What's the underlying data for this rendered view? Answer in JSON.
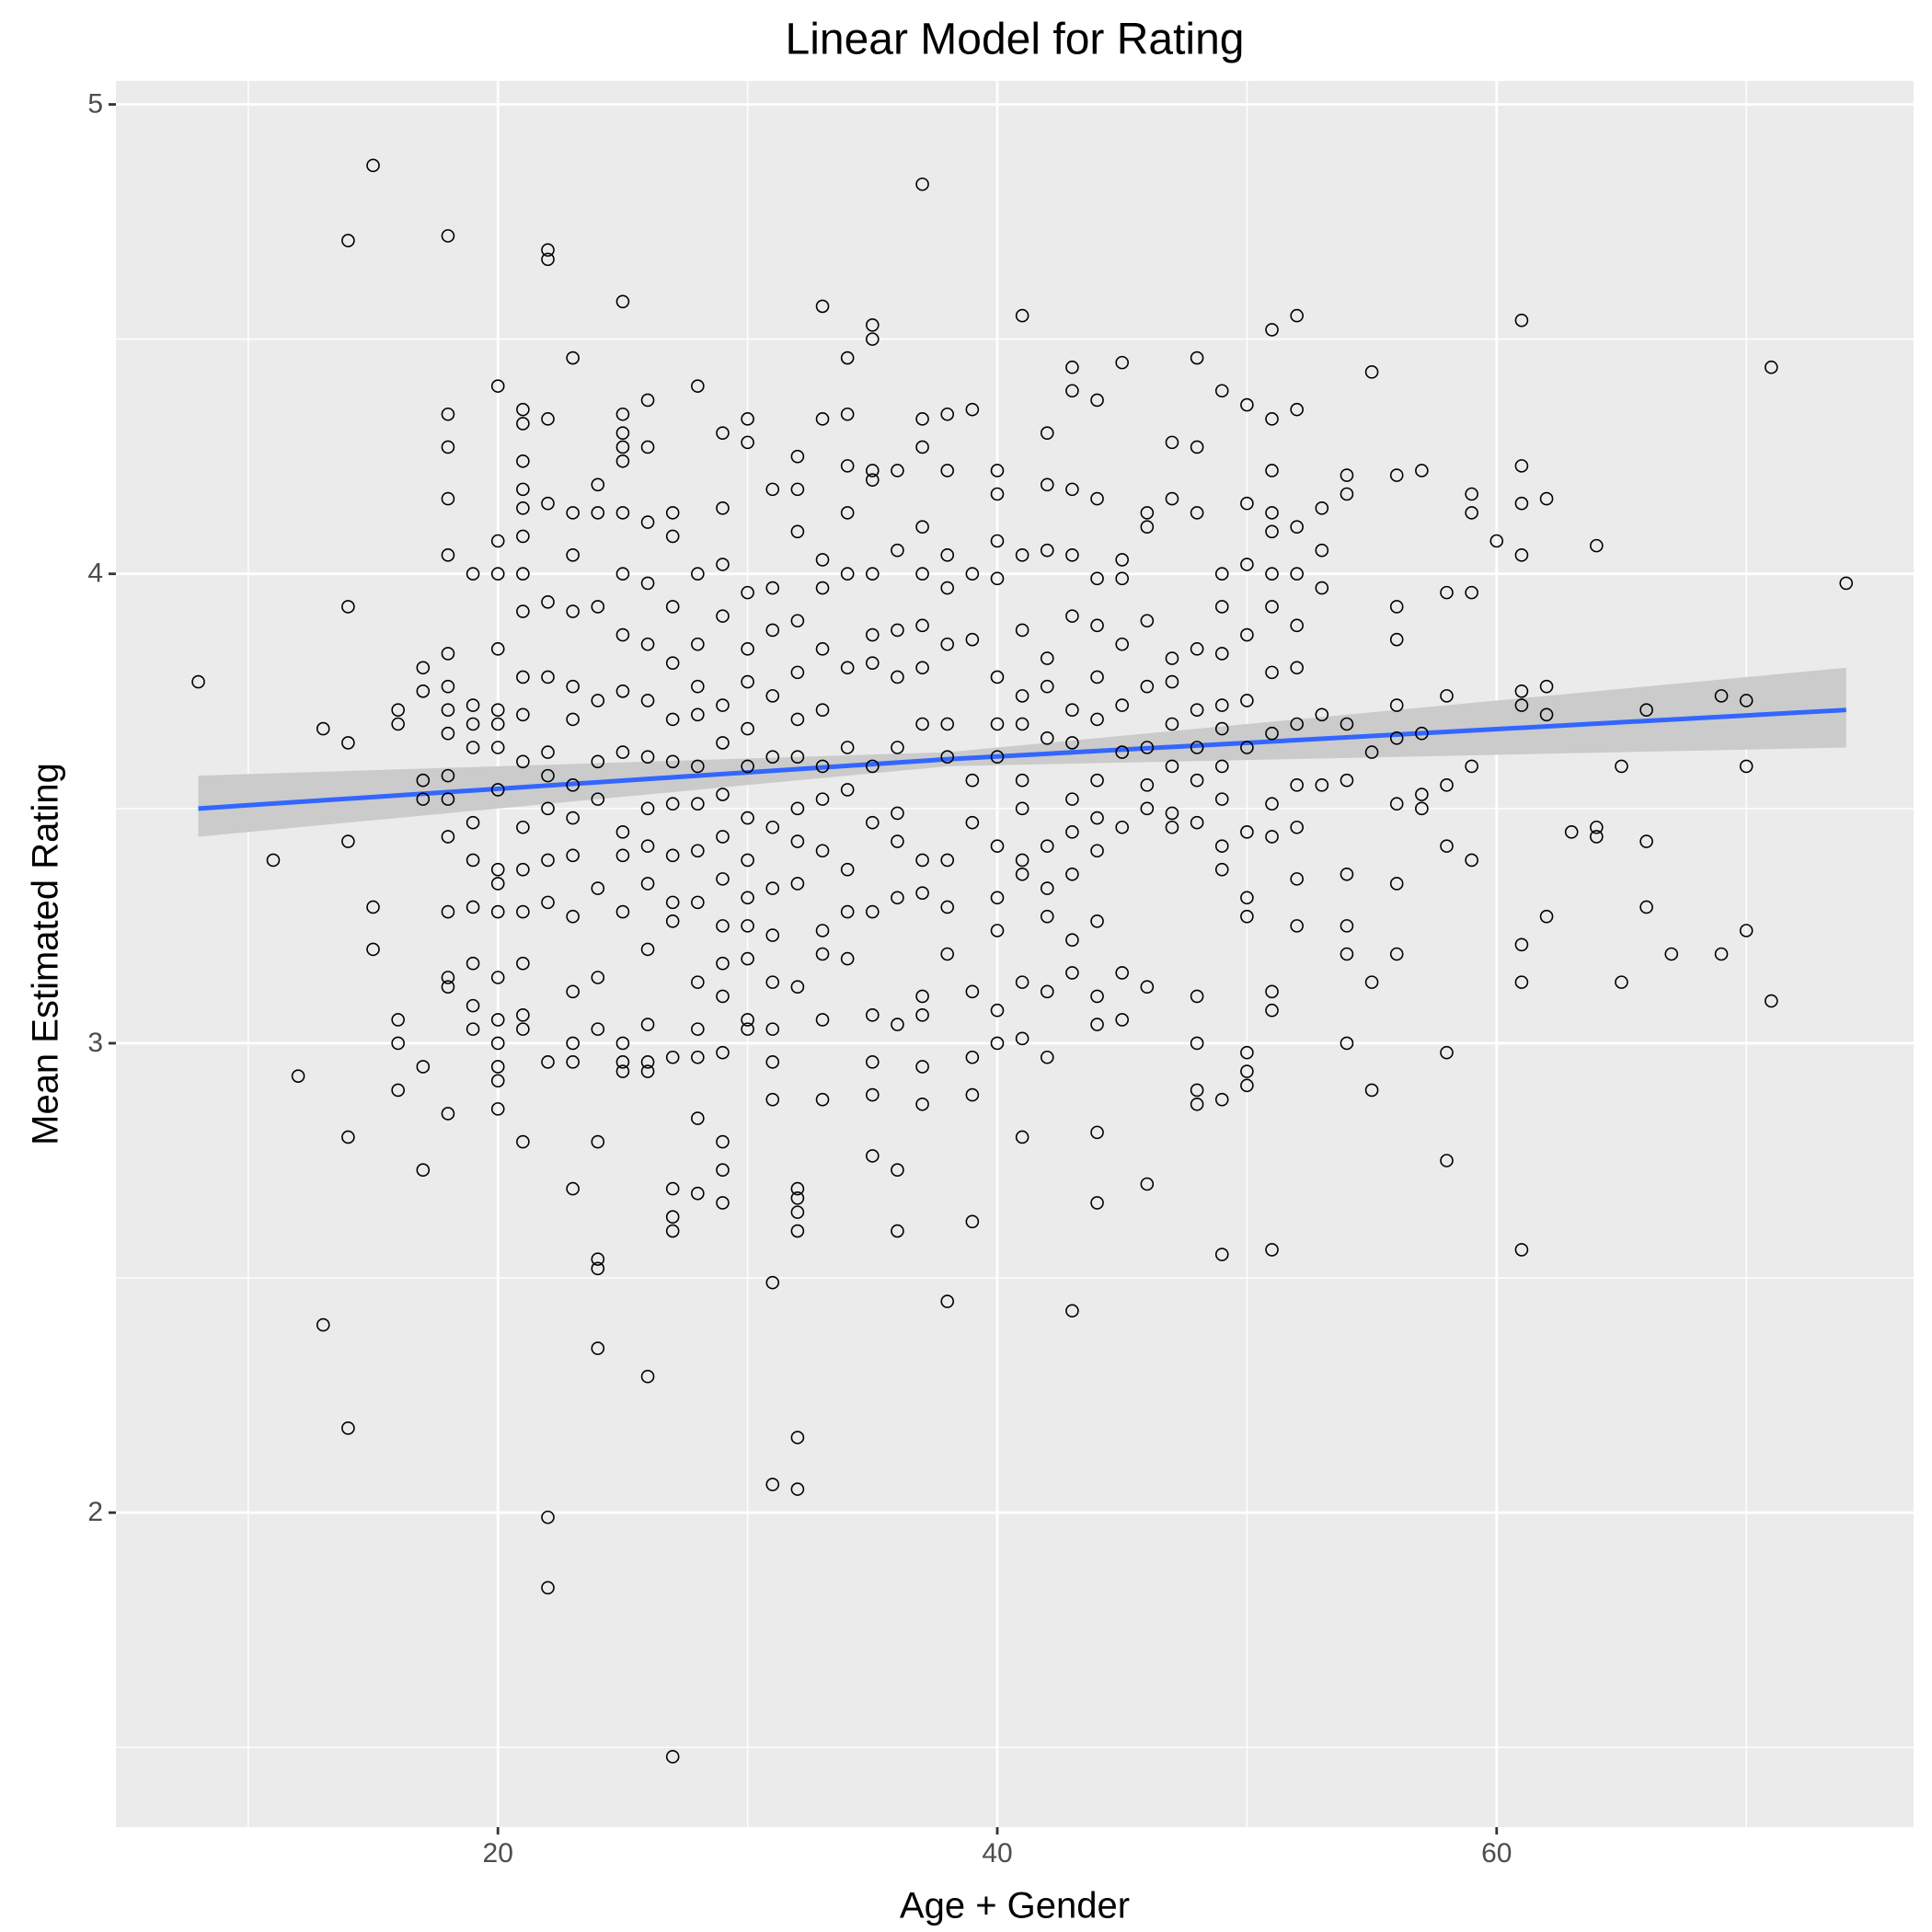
{
  "chart_data": {
    "type": "scatter",
    "title": "Linear Model for Rating",
    "x_label": "Age + Gender",
    "y_label": "Mean Estimated Rating",
    "xlim": [
      4.7,
      76.7
    ],
    "ylim": [
      1.33,
      5.05
    ],
    "xticks": [
      20,
      40,
      60
    ],
    "yticks": [
      2,
      3,
      4,
      5
    ],
    "grid": true,
    "point_color": "#000000",
    "fit": {
      "color": "#3366ff",
      "band_color": "#cbcbcb",
      "x": [
        8,
        38,
        74
      ],
      "y": [
        3.5,
        3.605,
        3.71
      ],
      "lower": [
        3.44,
        3.59,
        3.63
      ],
      "upper": [
        3.57,
        3.62,
        3.8
      ]
    },
    "x": [
      8,
      11,
      12,
      13,
      13,
      14,
      14,
      14,
      14,
      14,
      14,
      15,
      15,
      15,
      16,
      16,
      16,
      16,
      16,
      17,
      17,
      17,
      17,
      17,
      17,
      18,
      18,
      18,
      18,
      18,
      18,
      18,
      18,
      18,
      18,
      18,
      18,
      18,
      18,
      18,
      18,
      19,
      19,
      19,
      19,
      19,
      19,
      19,
      19,
      19,
      19,
      20,
      20,
      20,
      20,
      20,
      20,
      20,
      20,
      20,
      20,
      20,
      20,
      20,
      20,
      20,
      20,
      20,
      21,
      21,
      21,
      21,
      21,
      21,
      21,
      21,
      21,
      21,
      21,
      21,
      21,
      21,
      21,
      21,
      21,
      21,
      22,
      22,
      22,
      22,
      22,
      22,
      22,
      22,
      22,
      22,
      22,
      22,
      22,
      22,
      23,
      23,
      23,
      23,
      23,
      23,
      23,
      23,
      23,
      23,
      23,
      23,
      23,
      23,
      24,
      24,
      24,
      24,
      24,
      24,
      24,
      24,
      24,
      24,
      24,
      24,
      24,
      25,
      25,
      25,
      25,
      25,
      25,
      25,
      25,
      25,
      25,
      25,
      25,
      25,
      25,
      25,
      25,
      26,
      26,
      26,
      26,
      26,
      26,
      26,
      26,
      26,
      26,
      26,
      26,
      26,
      26,
      26,
      27,
      27,
      27,
      27,
      27,
      27,
      27,
      27,
      27,
      27,
      27,
      27,
      27,
      27,
      27,
      28,
      28,
      28,
      28,
      28,
      28,
      28,
      28,
      28,
      28,
      28,
      28,
      28,
      28,
      29,
      29,
      29,
      29,
      29,
      29,
      29,
      29,
      29,
      29,
      29,
      29,
      29,
      29,
      29,
      29,
      30,
      30,
      30,
      30,
      30,
      30,
      30,
      30,
      30,
      30,
      30,
      30,
      30,
      30,
      31,
      31,
      31,
      31,
      31,
      31,
      31,
      31,
      31,
      31,
      31,
      31,
      31,
      31,
      32,
      32,
      32,
      32,
      32,
      32,
      32,
      32,
      32,
      32,
      32,
      32,
      32,
      32,
      32,
      32,
      32,
      33,
      33,
      33,
      33,
      33,
      33,
      33,
      33,
      33,
      33,
      33,
      33,
      33,
      34,
      34,
      34,
      34,
      34,
      34,
      34,
      34,
      34,
      34,
      34,
      35,
      35,
      35,
      35,
      35,
      35,
      35,
      35,
      35,
      35,
      35,
      35,
      35,
      35,
      36,
      36,
      36,
      36,
      36,
      36,
      36,
      36,
      36,
      36,
      36,
      37,
      37,
      37,
      37,
      37,
      37,
      37,
      37,
      37,
      37,
      37,
      37,
      37,
      37,
      38,
      38,
      38,
      38,
      38,
      38,
      38,
      38,
      38,
      38,
      38,
      39,
      39,
      39,
      39,
      39,
      39,
      39,
      39,
      39,
      40,
      40,
      40,
      40,
      40,
      40,
      40,
      40,
      40,
      40,
      40,
      40,
      41,
      41,
      41,
      41,
      41,
      41,
      41,
      41,
      41,
      41,
      41,
      41,
      42,
      42,
      42,
      42,
      42,
      42,
      42,
      42,
      42,
      42,
      42,
      43,
      43,
      43,
      43,
      43,
      43,
      43,
      43,
      43,
      43,
      43,
      43,
      43,
      44,
      44,
      44,
      44,
      44,
      44,
      44,
      44,
      44,
      44,
      44,
      44,
      44,
      44,
      45,
      45,
      45,
      45,
      45,
      45,
      45,
      45,
      45,
      46,
      46,
      46,
      46,
      46,
      46,
      46,
      46,
      46,
      47,
      47,
      47,
      47,
      47,
      47,
      47,
      47,
      48,
      48,
      48,
      48,
      48,
      48,
      48,
      48,
      48,
      48,
      48,
      48,
      49,
      49,
      49,
      49,
      49,
      49,
      49,
      49,
      49,
      49,
      49,
      49,
      50,
      50,
      50,
      50,
      50,
      50,
      50,
      50,
      50,
      50,
      50,
      50,
      51,
      51,
      51,
      51,
      51,
      51,
      51,
      51,
      51,
      51,
      51,
      51,
      51,
      51,
      52,
      52,
      52,
      52,
      52,
      52,
      52,
      52,
      52,
      52,
      52,
      53,
      53,
      53,
      53,
      53,
      54,
      54,
      54,
      54,
      54,
      54,
      54,
      54,
      55,
      55,
      55,
      55,
      56,
      56,
      56,
      56,
      56,
      56,
      56,
      56,
      57,
      57,
      57,
      57,
      58,
      58,
      58,
      58,
      58,
      58,
      59,
      59,
      59,
      59,
      59,
      60,
      61,
      61,
      61,
      61,
      61,
      61,
      61,
      61,
      61,
      62,
      62,
      62,
      62,
      63,
      64,
      64,
      64,
      65,
      65,
      66,
      66,
      66,
      67,
      69,
      69,
      70,
      70,
      70,
      71,
      71,
      74
    ],
    "y": [
      3.77,
      3.39,
      2.93,
      3.67,
      2.4,
      4.71,
      3.93,
      3.64,
      3.43,
      2.8,
      2.18,
      4.87,
      3.29,
      3.2,
      3.71,
      3.68,
      3.05,
      3.0,
      2.9,
      3.8,
      3.75,
      3.56,
      3.52,
      2.95,
      2.73,
      4.72,
      4.34,
      4.27,
      4.16,
      4.04,
      3.83,
      3.76,
      3.71,
      3.66,
      3.57,
      3.52,
      3.44,
      3.28,
      3.14,
      3.12,
      2.85,
      4.0,
      3.72,
      3.68,
      3.63,
      3.47,
      3.39,
      3.29,
      3.17,
      3.08,
      3.03,
      4.4,
      4.07,
      4.0,
      3.84,
      3.71,
      3.68,
      3.63,
      3.54,
      3.37,
      3.34,
      3.28,
      3.14,
      3.05,
      3.0,
      2.95,
      2.92,
      2.86,
      4.35,
      4.32,
      4.24,
      4.18,
      4.14,
      4.08,
      4.0,
      3.92,
      3.78,
      3.7,
      3.6,
      3.46,
      3.37,
      3.28,
      3.17,
      3.06,
      3.03,
      2.79,
      4.69,
      4.67,
      4.33,
      4.15,
      3.94,
      3.78,
      3.62,
      3.57,
      3.5,
      3.39,
      3.3,
      2.96,
      1.99,
      1.84,
      4.46,
      4.13,
      4.04,
      3.92,
      3.76,
      3.69,
      3.55,
      3.48,
      3.4,
      3.27,
      3.11,
      3.0,
      2.96,
      2.69,
      4.19,
      4.13,
      3.93,
      3.73,
      3.6,
      3.52,
      3.33,
      3.14,
      3.03,
      2.79,
      2.54,
      2.52,
      2.35,
      4.58,
      4.34,
      4.3,
      4.27,
      4.24,
      4.13,
      4.0,
      3.87,
      3.75,
      3.62,
      3.45,
      3.4,
      3.28,
      3.0,
      2.96,
      2.94,
      4.37,
      4.27,
      4.11,
      3.98,
      3.85,
      3.73,
      3.61,
      3.5,
      3.42,
      3.34,
      3.2,
      3.04,
      2.96,
      2.94,
      2.29,
      4.13,
      4.08,
      3.93,
      3.81,
      3.69,
      3.6,
      3.51,
      3.4,
      3.3,
      3.26,
      2.97,
      2.69,
      2.63,
      2.6,
      1.48,
      4.4,
      4.0,
      3.85,
      3.76,
      3.7,
      3.59,
      3.51,
      3.41,
      3.3,
      3.13,
      3.03,
      2.97,
      2.84,
      2.68,
      4.3,
      4.14,
      4.02,
      3.91,
      3.72,
      3.64,
      3.53,
      3.44,
      3.35,
      3.25,
      3.17,
      3.1,
      2.98,
      2.79,
      2.73,
      2.66,
      4.33,
      4.28,
      3.96,
      3.84,
      3.77,
      3.67,
      3.59,
      3.48,
      3.39,
      3.31,
      3.25,
      3.18,
      3.05,
      3.03,
      4.18,
      3.97,
      3.88,
      3.74,
      3.61,
      3.46,
      3.33,
      3.23,
      3.13,
      3.03,
      2.96,
      2.88,
      2.49,
      2.06,
      4.25,
      4.18,
      4.09,
      3.9,
      3.79,
      3.69,
      3.61,
      3.5,
      3.43,
      3.34,
      3.12,
      2.69,
      2.67,
      2.64,
      2.6,
      2.16,
      2.05,
      4.57,
      4.33,
      4.03,
      3.97,
      3.84,
      3.71,
      3.59,
      3.52,
      3.41,
      3.24,
      3.19,
      3.05,
      2.88,
      4.46,
      4.34,
      4.23,
      4.13,
      4.0,
      3.8,
      3.63,
      3.54,
      3.37,
      3.28,
      3.18,
      4.53,
      4.5,
      4.22,
      4.2,
      4.0,
      3.87,
      3.81,
      3.59,
      3.47,
      3.28,
      3.06,
      2.96,
      2.89,
      2.76,
      4.22,
      4.05,
      3.88,
      3.78,
      3.63,
      3.49,
      3.43,
      3.31,
      3.04,
      2.73,
      2.6,
      4.83,
      4.33,
      4.27,
      4.1,
      4.0,
      3.89,
      3.8,
      3.68,
      3.39,
      3.32,
      3.1,
      3.06,
      2.95,
      2.87,
      4.34,
      4.22,
      4.04,
      3.97,
      3.85,
      3.68,
      3.61,
      3.39,
      3.29,
      3.19,
      2.45,
      4.35,
      4.0,
      3.86,
      3.56,
      3.47,
      3.11,
      2.97,
      2.89,
      2.62,
      4.22,
      4.17,
      4.07,
      3.99,
      3.78,
      3.68,
      3.61,
      3.42,
      3.31,
      3.24,
      3.07,
      3.0,
      4.55,
      4.04,
      3.88,
      3.74,
      3.68,
      3.56,
      3.5,
      3.39,
      3.36,
      3.13,
      3.01,
      2.8,
      4.3,
      4.19,
      4.05,
      3.82,
      3.76,
      3.65,
      3.42,
      3.33,
      3.27,
      3.11,
      2.97,
      4.44,
      4.39,
      4.18,
      4.04,
      3.91,
      3.71,
      3.64,
      3.52,
      3.45,
      3.36,
      3.22,
      3.15,
      2.43,
      4.37,
      4.16,
      3.99,
      3.89,
      3.78,
      3.69,
      3.56,
      3.48,
      3.41,
      3.26,
      3.1,
      3.04,
      2.81,
      2.66,
      4.45,
      4.03,
      3.99,
      3.85,
      3.72,
      3.62,
      3.46,
      3.15,
      3.05,
      4.13,
      4.1,
      3.9,
      3.76,
      3.63,
      3.55,
      3.5,
      3.12,
      2.7,
      4.28,
      4.16,
      3.82,
      3.77,
      3.68,
      3.59,
      3.49,
      3.46,
      4.46,
      4.27,
      4.13,
      3.84,
      3.71,
      3.63,
      3.56,
      3.47,
      3.1,
      3.0,
      2.9,
      2.87,
      4.39,
      4.0,
      3.93,
      3.83,
      3.72,
      3.67,
      3.59,
      3.52,
      3.42,
      3.37,
      2.88,
      2.55,
      4.36,
      4.15,
      4.02,
      3.87,
      3.73,
      3.63,
      3.45,
      3.31,
      3.27,
      2.98,
      2.94,
      2.91,
      4.52,
      4.33,
      4.22,
      4.13,
      4.09,
      4.0,
      3.93,
      3.79,
      3.66,
      3.51,
      3.44,
      3.11,
      3.07,
      2.56,
      4.55,
      4.35,
      4.1,
      4.0,
      3.89,
      3.8,
      3.68,
      3.55,
      3.46,
      3.35,
      3.25,
      4.14,
      4.05,
      3.97,
      3.7,
      3.55,
      4.21,
      4.17,
      3.68,
      3.56,
      3.36,
      3.25,
      3.19,
      3.0,
      4.43,
      3.62,
      3.13,
      2.9,
      4.21,
      3.93,
      3.86,
      3.72,
      3.65,
      3.51,
      3.34,
      3.19,
      4.22,
      3.66,
      3.53,
      3.5,
      3.96,
      3.74,
      3.55,
      3.42,
      2.98,
      2.75,
      4.17,
      4.13,
      3.96,
      3.59,
      3.39,
      4.07,
      4.54,
      4.23,
      4.15,
      4.04,
      3.75,
      3.72,
      3.21,
      3.13,
      2.56,
      4.16,
      3.76,
      3.7,
      3.27,
      3.45,
      4.06,
      3.46,
      3.44,
      3.59,
      3.13,
      3.71,
      3.43,
      3.29,
      3.19,
      3.74,
      3.19,
      3.73,
      3.59,
      3.24,
      4.44,
      3.09,
      3.98
    ]
  }
}
